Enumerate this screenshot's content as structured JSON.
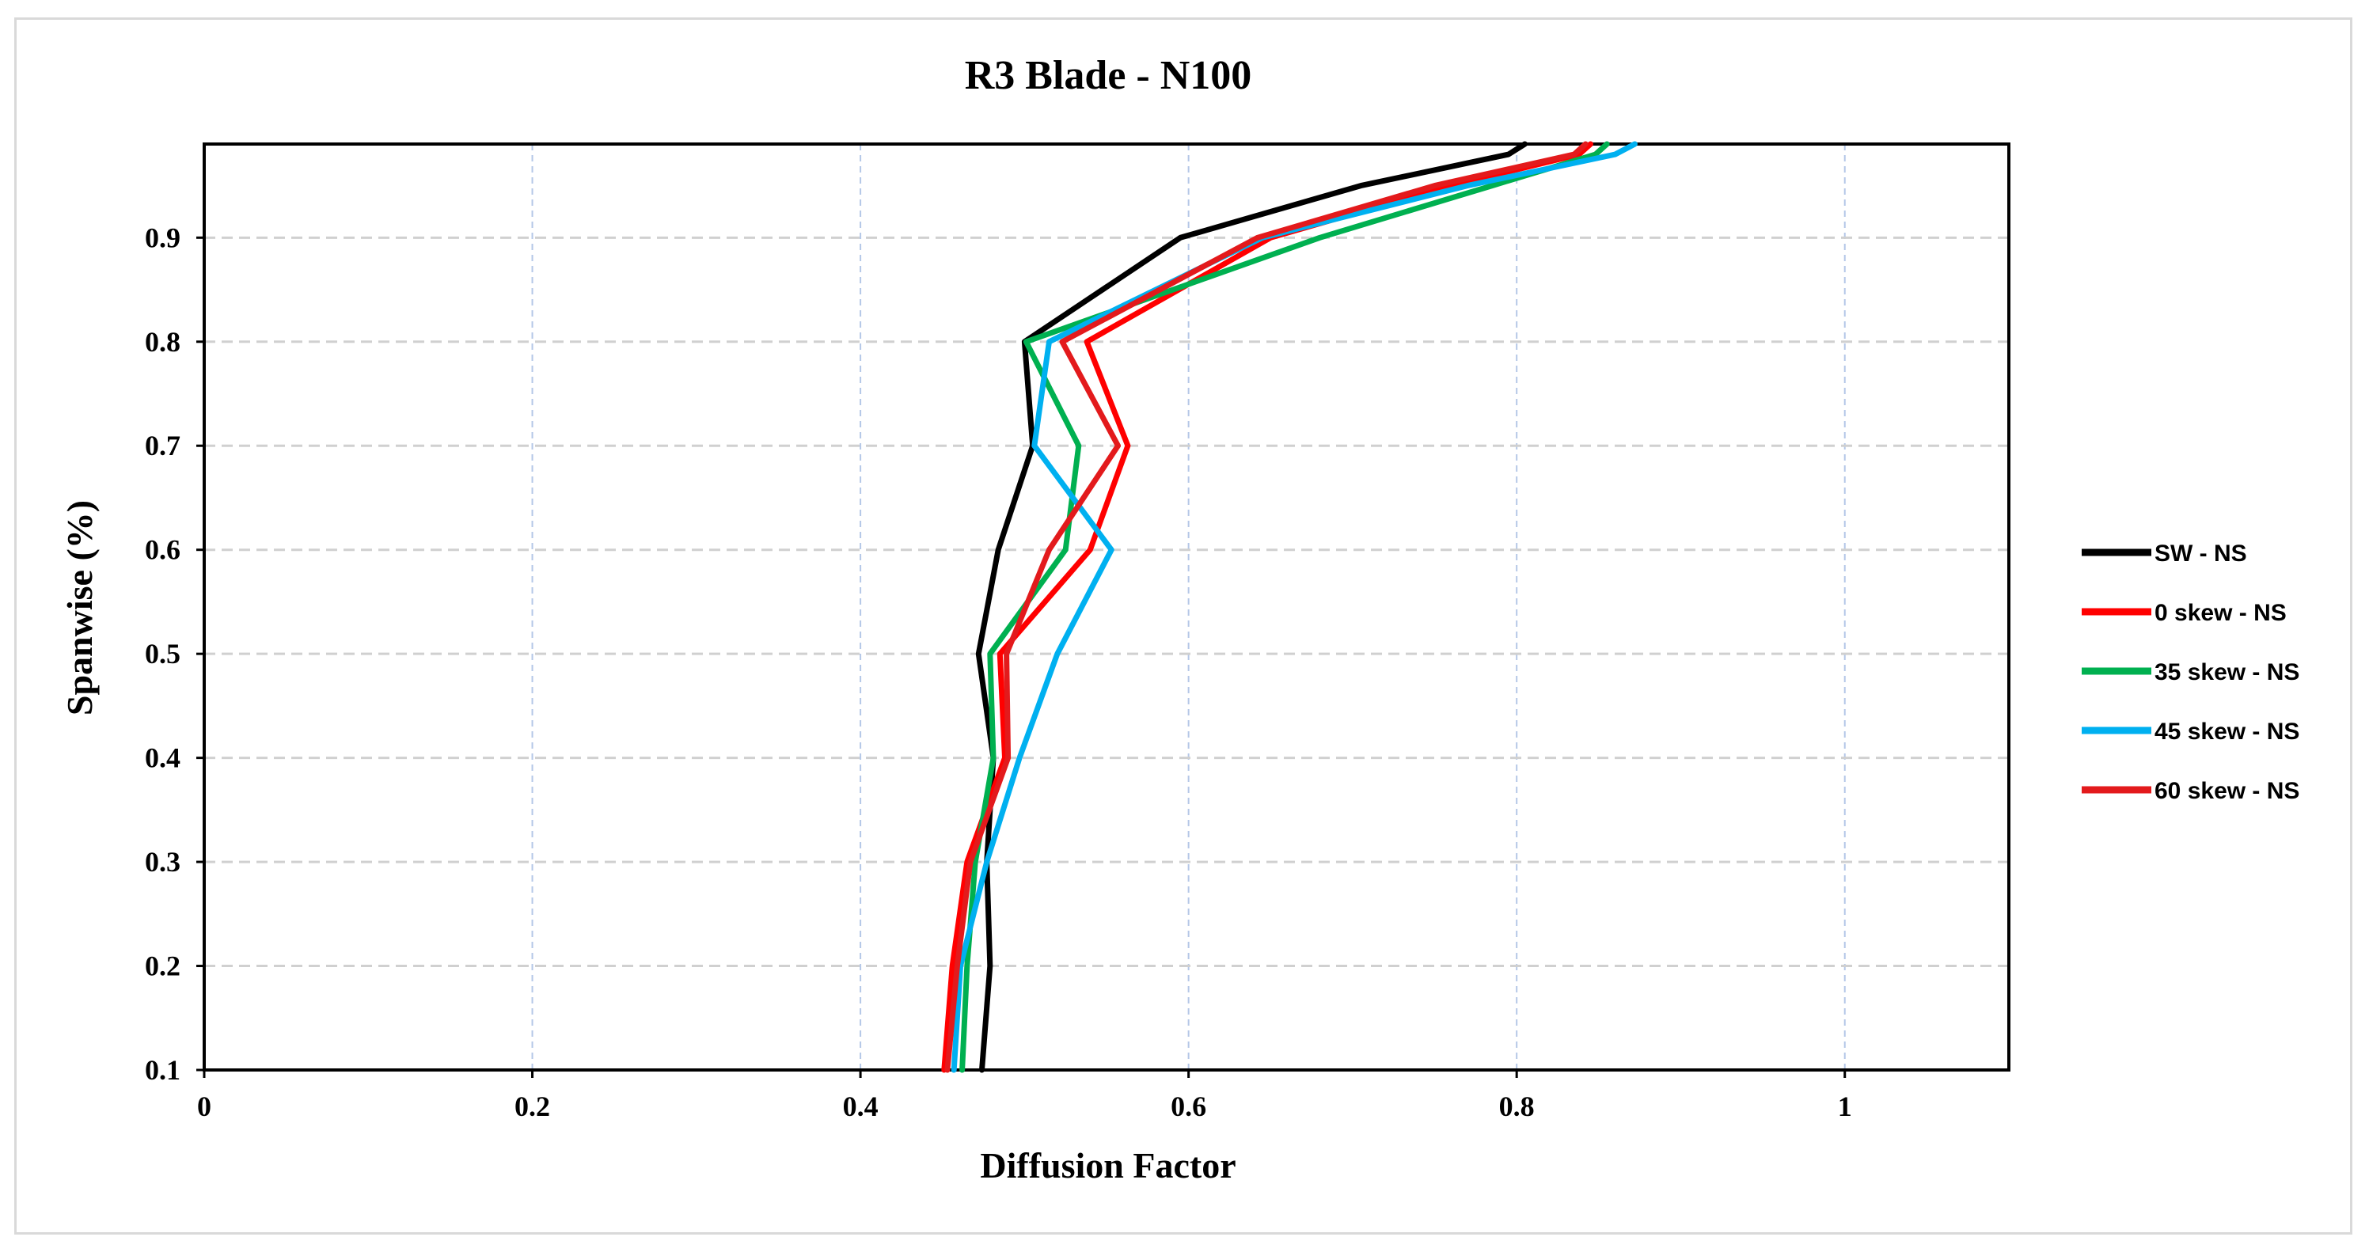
{
  "chart_data": {
    "type": "line",
    "title": "R3 Blade - N100",
    "xlabel": "Diffusion Factor",
    "ylabel": "Spanwise (%)",
    "xlim": [
      0,
      1.1
    ],
    "ylim": [
      0.1,
      0.99
    ],
    "xticks": [
      0,
      0.2,
      0.4,
      0.6,
      0.8,
      1
    ],
    "xtick_labels": [
      "0",
      "0.2",
      "0.4",
      "0.6",
      "0.8",
      "1"
    ],
    "yticks": [
      0.1,
      0.2,
      0.3,
      0.4,
      0.5,
      0.6,
      0.7,
      0.8,
      0.9
    ],
    "ytick_labels": [
      "0.1",
      "0.2",
      "0.3",
      "0.4",
      "0.5",
      "0.6",
      "0.7",
      "0.8",
      "0.9"
    ],
    "grid": true,
    "legend_position": "right",
    "series": [
      {
        "name": "SW - NS",
        "color": "#000000",
        "points": [
          [
            0.474,
            0.1
          ],
          [
            0.479,
            0.2
          ],
          [
            0.477,
            0.3
          ],
          [
            0.481,
            0.4
          ],
          [
            0.472,
            0.5
          ],
          [
            0.484,
            0.6
          ],
          [
            0.505,
            0.7
          ],
          [
            0.5,
            0.8
          ],
          [
            0.595,
            0.9
          ],
          [
            0.705,
            0.95
          ],
          [
            0.795,
            0.98
          ],
          [
            0.805,
            0.99
          ]
        ]
      },
      {
        "name": "0 skew - NS",
        "color": "#ff0000",
        "points": [
          [
            0.451,
            0.1
          ],
          [
            0.456,
            0.2
          ],
          [
            0.465,
            0.3
          ],
          [
            0.488,
            0.4
          ],
          [
            0.485,
            0.5
          ],
          [
            0.54,
            0.6
          ],
          [
            0.563,
            0.7
          ],
          [
            0.538,
            0.8
          ],
          [
            0.65,
            0.9
          ],
          [
            0.76,
            0.95
          ],
          [
            0.838,
            0.98
          ],
          [
            0.845,
            0.99
          ]
        ]
      },
      {
        "name": "35 skew - NS",
        "color": "#00b050",
        "points": [
          [
            0.462,
            0.1
          ],
          [
            0.465,
            0.2
          ],
          [
            0.47,
            0.3
          ],
          [
            0.481,
            0.4
          ],
          [
            0.479,
            0.5
          ],
          [
            0.525,
            0.6
          ],
          [
            0.533,
            0.7
          ],
          [
            0.501,
            0.8
          ],
          [
            0.68,
            0.9
          ],
          [
            0.785,
            0.95
          ],
          [
            0.848,
            0.98
          ],
          [
            0.855,
            0.99
          ]
        ]
      },
      {
        "name": "45 skew - NS",
        "color": "#00b0f0",
        "points": [
          [
            0.457,
            0.1
          ],
          [
            0.461,
            0.2
          ],
          [
            0.477,
            0.3
          ],
          [
            0.497,
            0.4
          ],
          [
            0.52,
            0.5
          ],
          [
            0.553,
            0.6
          ],
          [
            0.506,
            0.7
          ],
          [
            0.515,
            0.8
          ],
          [
            0.645,
            0.9
          ],
          [
            0.77,
            0.95
          ],
          [
            0.86,
            0.98
          ],
          [
            0.872,
            0.99
          ]
        ]
      },
      {
        "name": "60 skew - NS",
        "color": "#e31a1c",
        "points": [
          [
            0.453,
            0.1
          ],
          [
            0.459,
            0.2
          ],
          [
            0.467,
            0.3
          ],
          [
            0.49,
            0.4
          ],
          [
            0.489,
            0.5
          ],
          [
            0.515,
            0.6
          ],
          [
            0.557,
            0.7
          ],
          [
            0.523,
            0.8
          ],
          [
            0.642,
            0.9
          ],
          [
            0.75,
            0.95
          ],
          [
            0.835,
            0.98
          ],
          [
            0.842,
            0.99
          ]
        ]
      }
    ]
  }
}
